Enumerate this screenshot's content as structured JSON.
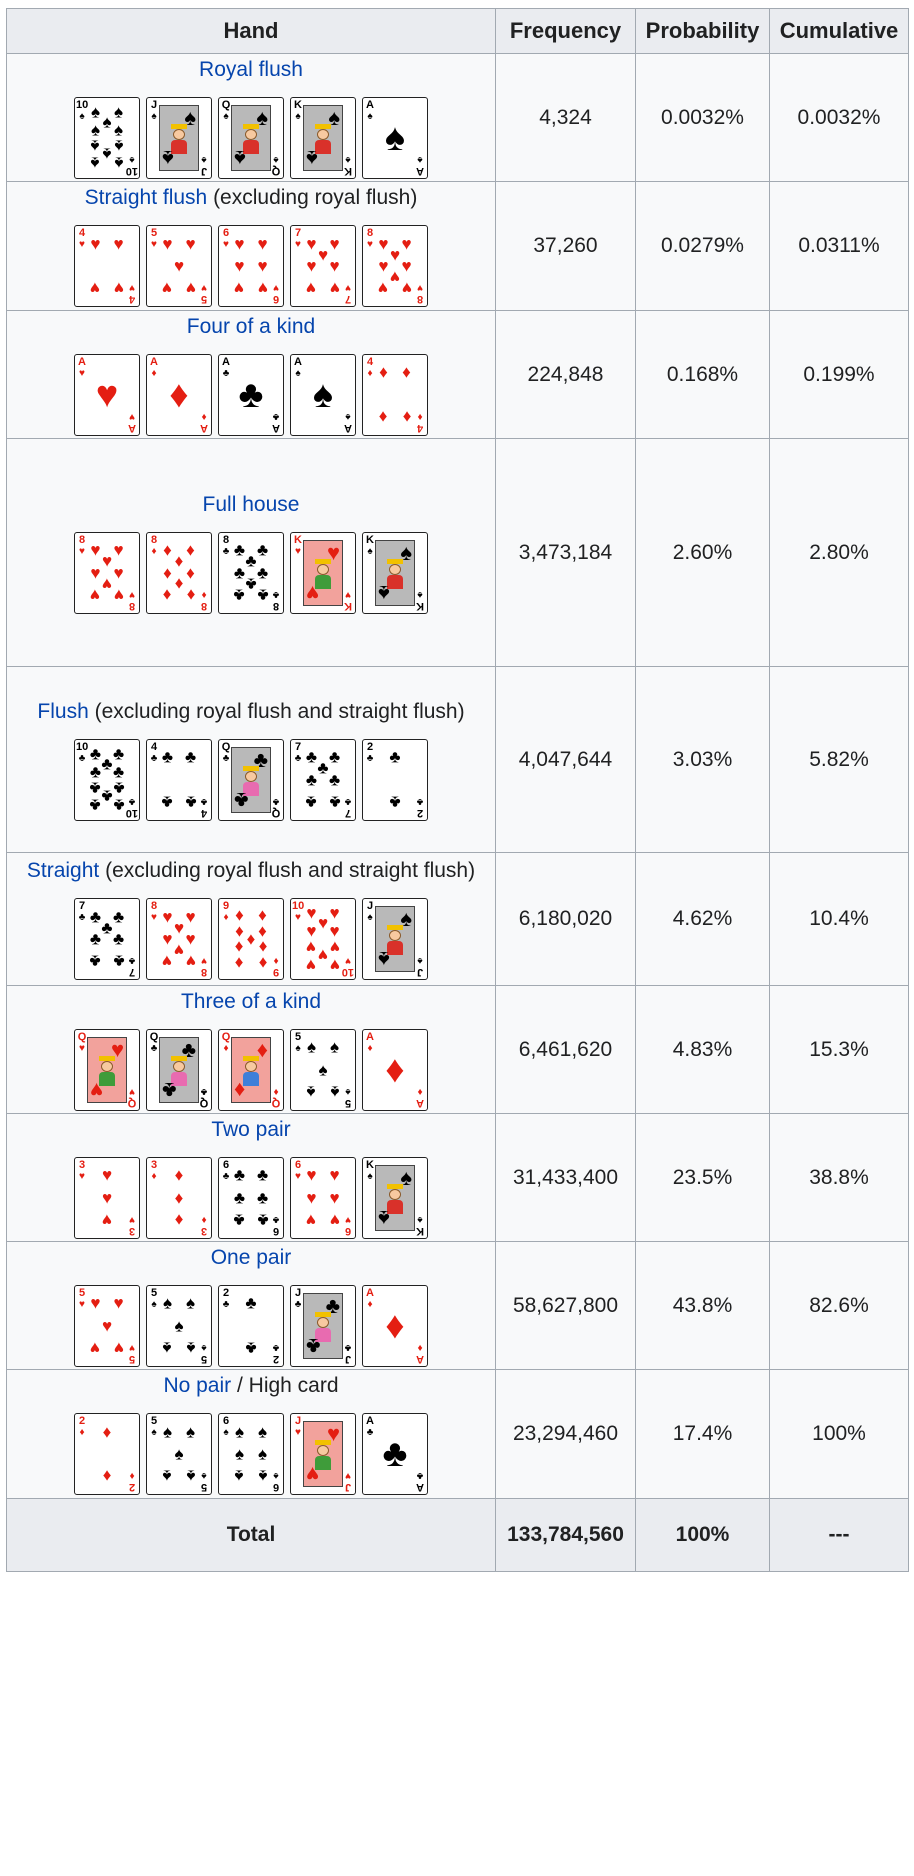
{
  "headers": {
    "hand": "Hand",
    "frequency": "Frequency",
    "probability": "Probability",
    "cumulative": "Cumulative"
  },
  "rows": [
    {
      "link": "Royal flush",
      "rest": "",
      "frequency": "4,324",
      "probability": "0.0032%",
      "cumulative": "0.0032%",
      "cards": [
        {
          "rank": "10",
          "suit": "♠",
          "color": "black"
        },
        {
          "rank": "J",
          "suit": "♠",
          "color": "black",
          "face": "J",
          "tint": "gray",
          "robe": "#d9312a"
        },
        {
          "rank": "Q",
          "suit": "♠",
          "color": "black",
          "face": "Q",
          "tint": "gray",
          "robe": "#d9312a"
        },
        {
          "rank": "K",
          "suit": "♠",
          "color": "black",
          "face": "K",
          "tint": "gray",
          "robe": "#d9312a"
        },
        {
          "rank": "A",
          "suit": "♠",
          "color": "black"
        }
      ]
    },
    {
      "link": "Straight flush",
      "rest": " (excluding royal flush)",
      "frequency": "37,260",
      "probability": "0.0279%",
      "cumulative": "0.0311%",
      "cards": [
        {
          "rank": "4",
          "suit": "♥",
          "color": "red"
        },
        {
          "rank": "5",
          "suit": "♥",
          "color": "red"
        },
        {
          "rank": "6",
          "suit": "♥",
          "color": "red"
        },
        {
          "rank": "7",
          "suit": "♥",
          "color": "red"
        },
        {
          "rank": "8",
          "suit": "♥",
          "color": "red"
        }
      ]
    },
    {
      "link": "Four of a kind",
      "rest": "",
      "frequency": "224,848",
      "probability": "0.168%",
      "cumulative": "0.199%",
      "cards": [
        {
          "rank": "A",
          "suit": "♥",
          "color": "red"
        },
        {
          "rank": "A",
          "suit": "♦",
          "color": "red"
        },
        {
          "rank": "A",
          "suit": "♣",
          "color": "black"
        },
        {
          "rank": "A",
          "suit": "♠",
          "color": "black"
        },
        {
          "rank": "4",
          "suit": "♦",
          "color": "red"
        }
      ]
    },
    {
      "link": "Full house",
      "rest": "",
      "frequency": "3,473,184",
      "probability": "2.60%",
      "cumulative": "2.80%",
      "cards": [
        {
          "rank": "8",
          "suit": "♥",
          "color": "red"
        },
        {
          "rank": "8",
          "suit": "♦",
          "color": "red"
        },
        {
          "rank": "8",
          "suit": "♣",
          "color": "black"
        },
        {
          "rank": "K",
          "suit": "♥",
          "color": "red",
          "face": "K",
          "tint": "pink",
          "robe": "#3f9c3a"
        },
        {
          "rank": "K",
          "suit": "♠",
          "color": "black",
          "face": "K",
          "tint": "gray",
          "robe": "#d9312a"
        }
      ]
    },
    {
      "link": "Flush",
      "rest": " (excluding royal flush and straight flush)",
      "frequency": "4,047,644",
      "probability": "3.03%",
      "cumulative": "5.82%",
      "cards": [
        {
          "rank": "10",
          "suit": "♣",
          "color": "black"
        },
        {
          "rank": "4",
          "suit": "♣",
          "color": "black"
        },
        {
          "rank": "Q",
          "suit": "♣",
          "color": "black",
          "face": "Q",
          "tint": "gray",
          "robe": "#e86bb0"
        },
        {
          "rank": "7",
          "suit": "♣",
          "color": "black"
        },
        {
          "rank": "2",
          "suit": "♣",
          "color": "black"
        }
      ]
    },
    {
      "link": "Straight",
      "rest": " (excluding royal flush and straight flush)",
      "frequency": "6,180,020",
      "probability": "4.62%",
      "cumulative": "10.4%",
      "cards": [
        {
          "rank": "7",
          "suit": "♣",
          "color": "black"
        },
        {
          "rank": "8",
          "suit": "♥",
          "color": "red"
        },
        {
          "rank": "9",
          "suit": "♦",
          "color": "red"
        },
        {
          "rank": "10",
          "suit": "♥",
          "color": "red"
        },
        {
          "rank": "J",
          "suit": "♠",
          "color": "black",
          "face": "J",
          "tint": "gray",
          "robe": "#d9312a"
        }
      ]
    },
    {
      "link": "Three of a kind",
      "rest": "",
      "frequency": "6,461,620",
      "probability": "4.83%",
      "cumulative": "15.3%",
      "cards": [
        {
          "rank": "Q",
          "suit": "♥",
          "color": "red",
          "face": "Q",
          "tint": "pink",
          "robe": "#3f9c3a"
        },
        {
          "rank": "Q",
          "suit": "♣",
          "color": "black",
          "face": "Q",
          "tint": "gray",
          "robe": "#e86bb0"
        },
        {
          "rank": "Q",
          "suit": "♦",
          "color": "red",
          "face": "Q",
          "tint": "pink",
          "robe": "#3f7fd9"
        },
        {
          "rank": "5",
          "suit": "♠",
          "color": "black"
        },
        {
          "rank": "A",
          "suit": "♦",
          "color": "red"
        }
      ]
    },
    {
      "link": "Two pair",
      "rest": "",
      "frequency": "31,433,400",
      "probability": "23.5%",
      "cumulative": "38.8%",
      "cards": [
        {
          "rank": "3",
          "suit": "♥",
          "color": "red"
        },
        {
          "rank": "3",
          "suit": "♦",
          "color": "red"
        },
        {
          "rank": "6",
          "suit": "♣",
          "color": "black"
        },
        {
          "rank": "6",
          "suit": "♥",
          "color": "red"
        },
        {
          "rank": "K",
          "suit": "♠",
          "color": "black",
          "face": "K",
          "tint": "gray",
          "robe": "#d9312a"
        }
      ]
    },
    {
      "link": "One pair",
      "rest": "",
      "frequency": "58,627,800",
      "probability": "43.8%",
      "cumulative": "82.6%",
      "cards": [
        {
          "rank": "5",
          "suit": "♥",
          "color": "red"
        },
        {
          "rank": "5",
          "suit": "♠",
          "color": "black"
        },
        {
          "rank": "2",
          "suit": "♣",
          "color": "black"
        },
        {
          "rank": "J",
          "suit": "♣",
          "color": "black",
          "face": "J",
          "tint": "gray",
          "robe": "#e86bb0"
        },
        {
          "rank": "A",
          "suit": "♦",
          "color": "red"
        }
      ]
    },
    {
      "link": "No pair",
      "rest": " / High card",
      "frequency": "23,294,460",
      "probability": "17.4%",
      "cumulative": "100%",
      "cards": [
        {
          "rank": "2",
          "suit": "♦",
          "color": "red"
        },
        {
          "rank": "5",
          "suit": "♠",
          "color": "black"
        },
        {
          "rank": "6",
          "suit": "♠",
          "color": "black"
        },
        {
          "rank": "J",
          "suit": "♥",
          "color": "red",
          "face": "J",
          "tint": "pink",
          "robe": "#3f9c3a"
        },
        {
          "rank": "A",
          "suit": "♣",
          "color": "black"
        }
      ]
    }
  ],
  "total": {
    "label": "Total",
    "frequency": "133,784,560",
    "probability": "100%",
    "cumulative": "---"
  }
}
